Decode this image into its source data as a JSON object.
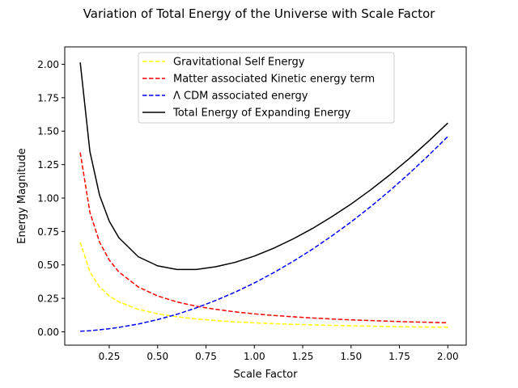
{
  "chart_data": {
    "type": "line",
    "title": "Variation of Total Energy of the Universe with Scale Factor",
    "xlabel": "Scale Factor",
    "ylabel": "Energy Magnitude",
    "xlim": [
      0.02,
      2.095
    ],
    "ylim": [
      -0.1,
      2.13
    ],
    "xticks": [
      0.25,
      0.5,
      0.75,
      1.0,
      1.25,
      1.5,
      1.75,
      2.0
    ],
    "xtick_labels": [
      "0.25",
      "0.50",
      "0.75",
      "1.00",
      "1.25",
      "1.50",
      "1.75",
      "2.00"
    ],
    "yticks": [
      0.0,
      0.25,
      0.5,
      0.75,
      1.0,
      1.25,
      1.5,
      1.75,
      2.0
    ],
    "ytick_labels": [
      "0.00",
      "0.25",
      "0.50",
      "0.75",
      "1.00",
      "1.25",
      "1.50",
      "1.75",
      "2.00"
    ],
    "grid": false,
    "legend_position": "top-center",
    "x": [
      0.1,
      0.15,
      0.2,
      0.25,
      0.3,
      0.4,
      0.5,
      0.6,
      0.7,
      0.8,
      0.9,
      1.0,
      1.1,
      1.2,
      1.3,
      1.4,
      1.5,
      1.6,
      1.7,
      1.8,
      1.9,
      2.0
    ],
    "series": [
      {
        "name": "Gravitational Self Energy",
        "color": "#ffff00",
        "dash": "dashed",
        "values": [
          0.67,
          0.447,
          0.335,
          0.268,
          0.223,
          0.168,
          0.134,
          0.112,
          0.096,
          0.084,
          0.074,
          0.067,
          0.061,
          0.056,
          0.052,
          0.048,
          0.045,
          0.042,
          0.039,
          0.037,
          0.035,
          0.034
        ]
      },
      {
        "name": "Matter associated Kinetic energy term",
        "color": "#ff0000",
        "dash": "dashed",
        "values": [
          1.34,
          0.893,
          0.67,
          0.536,
          0.447,
          0.335,
          0.268,
          0.223,
          0.191,
          0.168,
          0.149,
          0.134,
          0.122,
          0.112,
          0.103,
          0.096,
          0.089,
          0.084,
          0.079,
          0.074,
          0.071,
          0.067
        ]
      },
      {
        "name": "Λ CDM associated energy",
        "color": "#0000ff",
        "dash": "dashed",
        "values": [
          0.004,
          0.008,
          0.015,
          0.023,
          0.033,
          0.058,
          0.091,
          0.131,
          0.179,
          0.234,
          0.296,
          0.365,
          0.442,
          0.526,
          0.617,
          0.716,
          0.821,
          0.934,
          1.055,
          1.183,
          1.318,
          1.46
        ]
      },
      {
        "name": "Total Energy of Expanding Energy",
        "color": "#000000",
        "dash": "solid",
        "values": [
          2.014,
          1.348,
          1.02,
          0.827,
          0.703,
          0.561,
          0.493,
          0.466,
          0.466,
          0.486,
          0.519,
          0.566,
          0.625,
          0.694,
          0.772,
          0.86,
          0.955,
          1.06,
          1.173,
          1.294,
          1.424,
          1.561
        ]
      }
    ]
  }
}
